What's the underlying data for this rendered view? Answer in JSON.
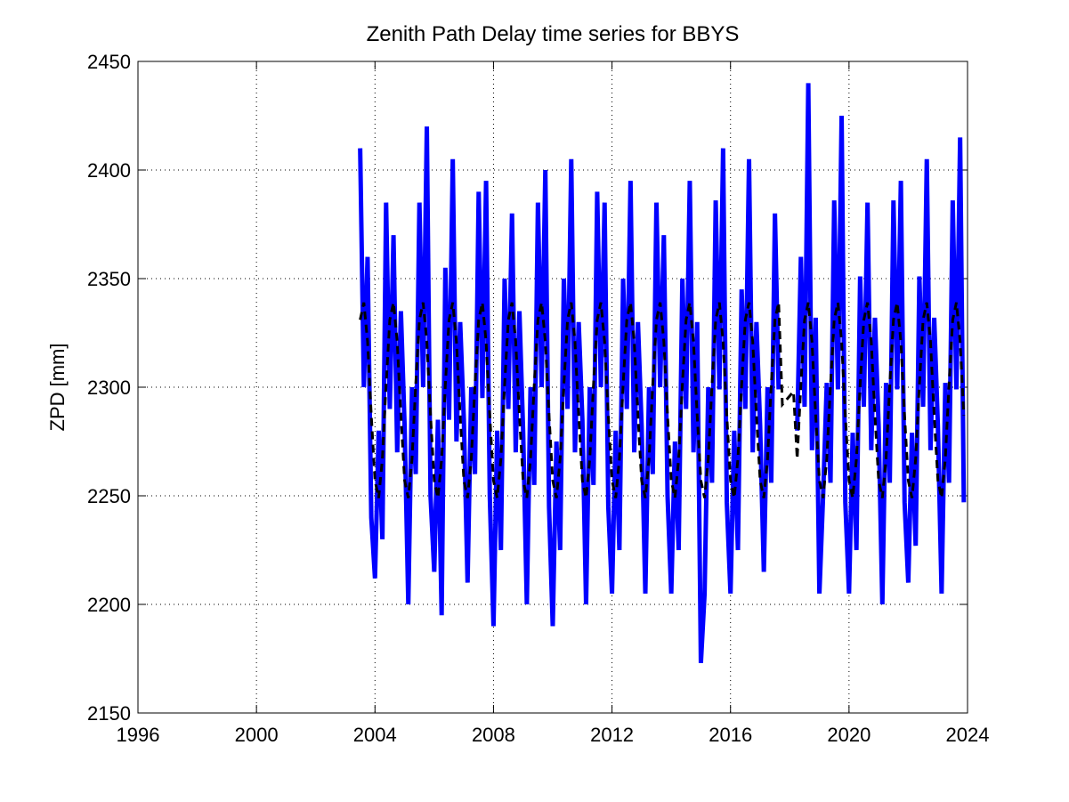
{
  "chart_data": {
    "type": "line",
    "title": "Zenith Path Delay time series for BBYS",
    "y_label": "ZPD [mm]",
    "xlim": [
      1996,
      2024
    ],
    "xticks": [
      1996,
      2000,
      2004,
      2008,
      2012,
      2016,
      2020,
      2024
    ],
    "ylim": [
      2150,
      2450
    ],
    "yticks": [
      2150,
      2200,
      2250,
      2300,
      2350,
      2400,
      2450
    ],
    "grid": true,
    "x": [
      2003.5,
      2003.625,
      2003.75,
      2003.875,
      2004,
      2004.125,
      2004.25,
      2004.375,
      2004.5,
      2004.625,
      2004.75,
      2004.875,
      2005,
      2005.125,
      2005.25,
      2005.375,
      2005.5,
      2005.625,
      2005.75,
      2005.875,
      2006,
      2006.125,
      2006.25,
      2006.375,
      2006.5,
      2006.625,
      2006.75,
      2006.875,
      2007,
      2007.125,
      2007.25,
      2007.375,
      2007.5,
      2007.625,
      2007.75,
      2007.875,
      2008,
      2008.125,
      2008.25,
      2008.375,
      2008.5,
      2008.625,
      2008.75,
      2008.875,
      2009,
      2009.125,
      2009.25,
      2009.375,
      2009.5,
      2009.625,
      2009.75,
      2009.875,
      2010,
      2010.125,
      2010.25,
      2010.375,
      2010.5,
      2010.625,
      2010.75,
      2010.875,
      2011,
      2011.125,
      2011.25,
      2011.375,
      2011.5,
      2011.625,
      2011.75,
      2011.875,
      2012,
      2012.125,
      2012.25,
      2012.375,
      2012.5,
      2012.625,
      2012.75,
      2012.875,
      2013,
      2013.125,
      2013.25,
      2013.375,
      2013.5,
      2013.625,
      2013.75,
      2013.875,
      2014,
      2014.125,
      2014.25,
      2014.375,
      2014.5,
      2014.625,
      2014.75,
      2014.875,
      2015,
      2015.125,
      2015.25,
      2015.375,
      2015.5,
      2015.625,
      2015.75,
      2015.875,
      2016,
      2016.125,
      2016.25,
      2016.375,
      2016.5,
      2016.625,
      2016.75,
      2016.875,
      2017,
      2017.125,
      2017.25,
      2017.375,
      2017.5,
      2017.625,
      2017.75,
      2017.875,
      2018,
      2018.125,
      2018.25,
      2018.375,
      2018.5,
      2018.625,
      2018.75,
      2018.875,
      2019,
      2019.125,
      2019.25,
      2019.375,
      2019.5,
      2019.625,
      2019.75,
      2019.875,
      2020,
      2020.125,
      2020.25,
      2020.375,
      2020.5,
      2020.625,
      2020.75,
      2020.875,
      2021,
      2021.125,
      2021.25,
      2021.375,
      2021.5,
      2021.625,
      2021.75,
      2021.875,
      2022,
      2022.125,
      2022.25,
      2022.375,
      2022.5,
      2022.625,
      2022.75,
      2022.875,
      2023,
      2023.125,
      2023.25,
      2023.375,
      2023.5,
      2023.625,
      2023.75,
      2023.875
    ],
    "series": [
      {
        "color": "#0000ff",
        "width": 5,
        "dashed": false,
        "values": [
          2410,
          2300,
          2360,
          2240,
          2212,
          2280,
          2230,
          2385,
          2290,
          2370,
          2270,
          2335,
          2282,
          2200,
          2300,
          2260,
          2385,
          2300,
          2420,
          2250,
          2215,
          2285,
          2195,
          2355,
          2285,
          2405,
          2275,
          2330,
          2285,
          2210,
          2300,
          2260,
          2390,
          2295,
          2395,
          2250,
          2190,
          2280,
          2225,
          2350,
          2290,
          2380,
          2270,
          2335,
          2280,
          2200,
          2300,
          2255,
          2385,
          2300,
          2400,
          2245,
          2190,
          2275,
          2225,
          2350,
          2290,
          2405,
          2270,
          2330,
          2285,
          2200,
          2300,
          2255,
          2390,
          2300,
          2385,
          2245,
          2205,
          2280,
          2225,
          2350,
          2290,
          2395,
          2270,
          2330,
          2282,
          2205,
          2300,
          2260,
          2385,
          2300,
          2370,
          2250,
          2205,
          2275,
          2225,
          2350,
          2290,
          2395,
          2270,
          2330,
          2173,
          2205,
          2300,
          2256,
          2386,
          2299,
          2410,
          2247,
          2205,
          2280,
          2225,
          2345,
          2290,
          2405,
          2270,
          2330,
          2282,
          2215,
          2300,
          2256,
          2380,
          2299,
          null,
          null,
          null,
          null,
          2280,
          2360,
          2291,
          2440,
          2271,
          2332,
          2205,
          2250,
          2302,
          2256,
          2386,
          2299,
          2425,
          2247,
          2205,
          2279,
          2225,
          2351,
          2291,
          2385,
          2271,
          2332,
          2282,
          2200,
          2302,
          2256,
          2386,
          2299,
          2395,
          2247,
          2210,
          2279,
          2227,
          2351,
          2291,
          2405,
          2271,
          2332,
          2282,
          2205,
          2302,
          2256,
          2386,
          2299,
          2415,
          2247
        ]
      },
      {
        "color": "#000000",
        "width": 3,
        "dashed": true,
        "values": [
          2331,
          2339,
          2321,
          2287,
          2257,
          2249,
          2267,
          2301,
          2331,
          2339,
          2321,
          2287,
          2257,
          2249,
          2267,
          2301,
          2331,
          2339,
          2321,
          2287,
          2257,
          2249,
          2267,
          2301,
          2331,
          2339,
          2321,
          2287,
          2257,
          2249,
          2267,
          2301,
          2331,
          2339,
          2321,
          2287,
          2257,
          2249,
          2267,
          2301,
          2331,
          2339,
          2321,
          2287,
          2257,
          2249,
          2267,
          2301,
          2331,
          2339,
          2321,
          2287,
          2257,
          2249,
          2267,
          2301,
          2331,
          2339,
          2321,
          2287,
          2257,
          2249,
          2267,
          2301,
          2331,
          2339,
          2321,
          2287,
          2257,
          2249,
          2267,
          2301,
          2331,
          2339,
          2321,
          2287,
          2257,
          2249,
          2267,
          2301,
          2331,
          2339,
          2321,
          2287,
          2257,
          2249,
          2267,
          2301,
          2331,
          2339,
          2321,
          2287,
          2257,
          2249,
          2267,
          2301,
          2331,
          2339,
          2321,
          2287,
          2257,
          2249,
          2267,
          2301,
          2331,
          2339,
          2321,
          2287,
          2257,
          2249,
          2267,
          2301,
          2331,
          2339,
          2292,
          2294,
          2296,
          2298,
          2267,
          2301,
          2331,
          2339,
          2321,
          2287,
          2257,
          2249,
          2267,
          2301,
          2331,
          2339,
          2321,
          2287,
          2257,
          2249,
          2267,
          2301,
          2331,
          2339,
          2321,
          2287,
          2257,
          2249,
          2267,
          2301,
          2331,
          2339,
          2321,
          2287,
          2257,
          2249,
          2267,
          2301,
          2331,
          2339,
          2321,
          2287,
          2257,
          2249,
          2267,
          2301,
          2331,
          2339,
          2321,
          2287
        ]
      }
    ]
  }
}
